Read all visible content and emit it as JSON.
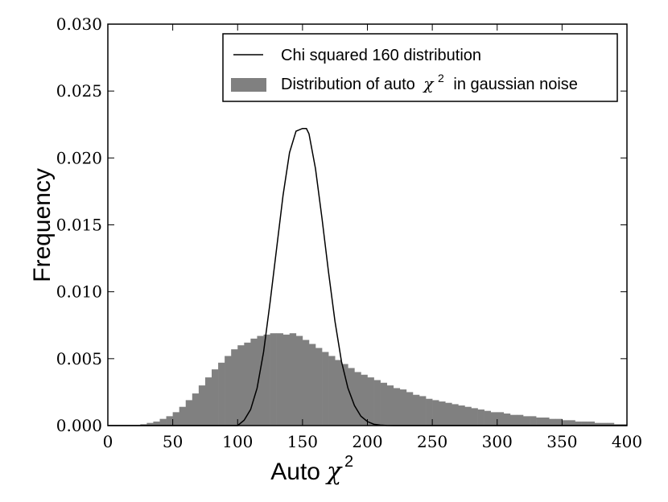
{
  "chart_data": {
    "type": "bar",
    "xlabel": "Auto",
    "xlabel_symbol": "χ",
    "xlabel_superscript": "2",
    "ylabel": "Frequency",
    "xlim": [
      0,
      400
    ],
    "ylim": [
      0,
      0.03
    ],
    "x_ticks": [
      "0",
      "50",
      "100",
      "150",
      "200",
      "250",
      "300",
      "350",
      "400"
    ],
    "y_ticks": [
      "0.000",
      "0.005",
      "0.010",
      "0.015",
      "0.020",
      "0.025",
      "0.030"
    ],
    "grid": false,
    "legend_position": "top-right",
    "series": [
      {
        "name": "Chi squared 160 distribution",
        "type": "line",
        "color": "#000000",
        "x": [
          100,
          105,
          110,
          115,
          120,
          125,
          130,
          135,
          140,
          145,
          150,
          153,
          155,
          160,
          165,
          170,
          175,
          180,
          185,
          190,
          195,
          200,
          205,
          210,
          215,
          220
        ],
        "values": [
          0.0,
          0.0004,
          0.0012,
          0.0028,
          0.0055,
          0.0092,
          0.0132,
          0.0172,
          0.0204,
          0.022,
          0.0222,
          0.0222,
          0.0218,
          0.0192,
          0.0155,
          0.0115,
          0.0078,
          0.0048,
          0.0028,
          0.0015,
          0.0007,
          0.0003,
          0.0001,
          4e-05,
          1e-05,
          0.0
        ]
      },
      {
        "name": "Distribution of auto",
        "name_symbol": "χ",
        "name_superscript": "2",
        "name_suffix": "in gaussian noise",
        "type": "histogram",
        "color": "#808080",
        "bin_width": 5,
        "bin_starts": [
          25,
          30,
          35,
          40,
          45,
          50,
          55,
          60,
          65,
          70,
          75,
          80,
          85,
          90,
          95,
          100,
          105,
          110,
          115,
          120,
          125,
          130,
          135,
          140,
          145,
          150,
          155,
          160,
          165,
          170,
          175,
          180,
          185,
          190,
          195,
          200,
          205,
          210,
          215,
          220,
          225,
          230,
          235,
          240,
          245,
          250,
          255,
          260,
          265,
          270,
          275,
          280,
          285,
          290,
          295,
          300,
          305,
          310,
          315,
          320,
          325,
          330,
          335,
          340,
          345,
          350,
          355,
          360,
          365,
          370,
          375,
          380,
          385,
          390,
          395
        ],
        "values": [
          0.0001,
          0.0002,
          0.0003,
          0.0005,
          0.0007,
          0.001,
          0.0014,
          0.0019,
          0.0024,
          0.003,
          0.0036,
          0.0042,
          0.0047,
          0.0052,
          0.0057,
          0.006,
          0.0062,
          0.0065,
          0.0067,
          0.0068,
          0.0069,
          0.0069,
          0.0068,
          0.0069,
          0.0067,
          0.0064,
          0.0061,
          0.0058,
          0.0055,
          0.0052,
          0.0049,
          0.0046,
          0.0043,
          0.004,
          0.0038,
          0.0036,
          0.0034,
          0.0032,
          0.003,
          0.0028,
          0.0027,
          0.0025,
          0.0023,
          0.0022,
          0.002,
          0.0019,
          0.0018,
          0.0017,
          0.0016,
          0.0015,
          0.0014,
          0.0013,
          0.0012,
          0.0011,
          0.001,
          0.001,
          0.0009,
          0.0008,
          0.0008,
          0.0007,
          0.0007,
          0.0006,
          0.0006,
          0.0005,
          0.0005,
          0.0004,
          0.0004,
          0.0003,
          0.0003,
          0.0003,
          0.0002,
          0.0002,
          0.0002,
          0.0001,
          0.0001
        ]
      }
    ]
  }
}
